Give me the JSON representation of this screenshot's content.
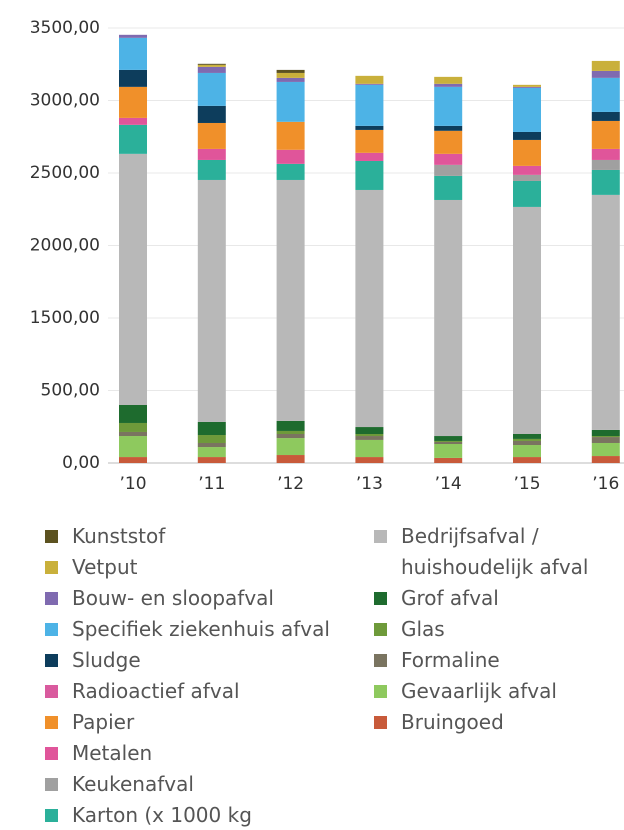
{
  "chart_data": {
    "type": "stacked_bar",
    "categories": [
      "’10",
      "’11",
      "’12",
      "’13",
      "’14",
      "’15",
      "’16"
    ],
    "ylim": [
      0,
      3500
    ],
    "yticks": [
      {
        "value": 0,
        "label": "0,00"
      },
      {
        "value": 500,
        "label": "500,00"
      },
      {
        "value": 1500,
        "label": "1500,00"
      },
      {
        "value": 2000,
        "label": "2000,00"
      },
      {
        "value": 2500,
        "label": "2500,00"
      },
      {
        "value": 3000,
        "label": "3000,00"
      },
      {
        "value": 3500,
        "label": "3500,00"
      }
    ],
    "grid": true,
    "series": [
      {
        "name": "Bruingoed",
        "color": "#c85a3a",
        "values": [
          41,
          41,
          55,
          41,
          35,
          41,
          48
        ]
      },
      {
        "name": "Gevaarlijk afval",
        "color": "#8ec95e",
        "values": [
          145,
          69,
          117,
          118,
          96,
          83,
          90
        ]
      },
      {
        "name": "Formaline",
        "color": "#7a7460",
        "values": [
          28,
          28,
          28,
          27,
          14,
          28,
          41
        ]
      },
      {
        "name": "Glas",
        "color": "#6e9a3a",
        "values": [
          62,
          55,
          21,
          14,
          7,
          14,
          7
        ]
      },
      {
        "name": "Grof afval",
        "color": "#1e6b2e",
        "values": [
          124,
          90,
          69,
          48,
          34,
          34,
          42
        ]
      },
      {
        "name": "Bedrijfsafval / huishoudelijk afval",
        "color": "#b8b8b8",
        "values": [
          2232,
          2169,
          2162,
          2135,
          2128,
          2066,
          2121
        ]
      },
      {
        "name": "Karton (x 1000 kg",
        "color": "#2bb09a",
        "values": [
          200,
          138,
          111,
          200,
          166,
          179,
          172
        ]
      },
      {
        "name": "Keukenafval",
        "color": "#a0a0a0",
        "values": [
          0,
          0,
          0,
          0,
          76,
          42,
          69
        ]
      },
      {
        "name": "Metalen",
        "color": "#e0559a",
        "values": [
          48,
          76,
          97,
          56,
          76,
          62,
          76
        ]
      },
      {
        "name": "Papier",
        "color": "#f0902a",
        "values": [
          214,
          179,
          193,
          158,
          159,
          179,
          193
        ]
      },
      {
        "name": "Radioactief afval",
        "color": "#d95a9e",
        "values": [
          0,
          0,
          0,
          0,
          0,
          0,
          0
        ]
      },
      {
        "name": "Sludge",
        "color": "#0d3d5c",
        "values": [
          117,
          118,
          0,
          28,
          34,
          55,
          62
        ]
      },
      {
        "name": "Specifiek ziekenhuis afval",
        "color": "#4db3e6",
        "values": [
          221,
          227,
          275,
          283,
          269,
          304,
          235
        ]
      },
      {
        "name": "Bouw- en sloopafval",
        "color": "#7f6ab0",
        "values": [
          21,
          42,
          28,
          7,
          21,
          7,
          48
        ]
      },
      {
        "name": "Vetput",
        "color": "#c9b03b",
        "values": [
          0,
          14,
          34,
          55,
          48,
          14,
          69
        ]
      },
      {
        "name": "Kunststof",
        "color": "#5c5220",
        "values": [
          0,
          7,
          21,
          0,
          0,
          0,
          0
        ]
      }
    ]
  }
}
